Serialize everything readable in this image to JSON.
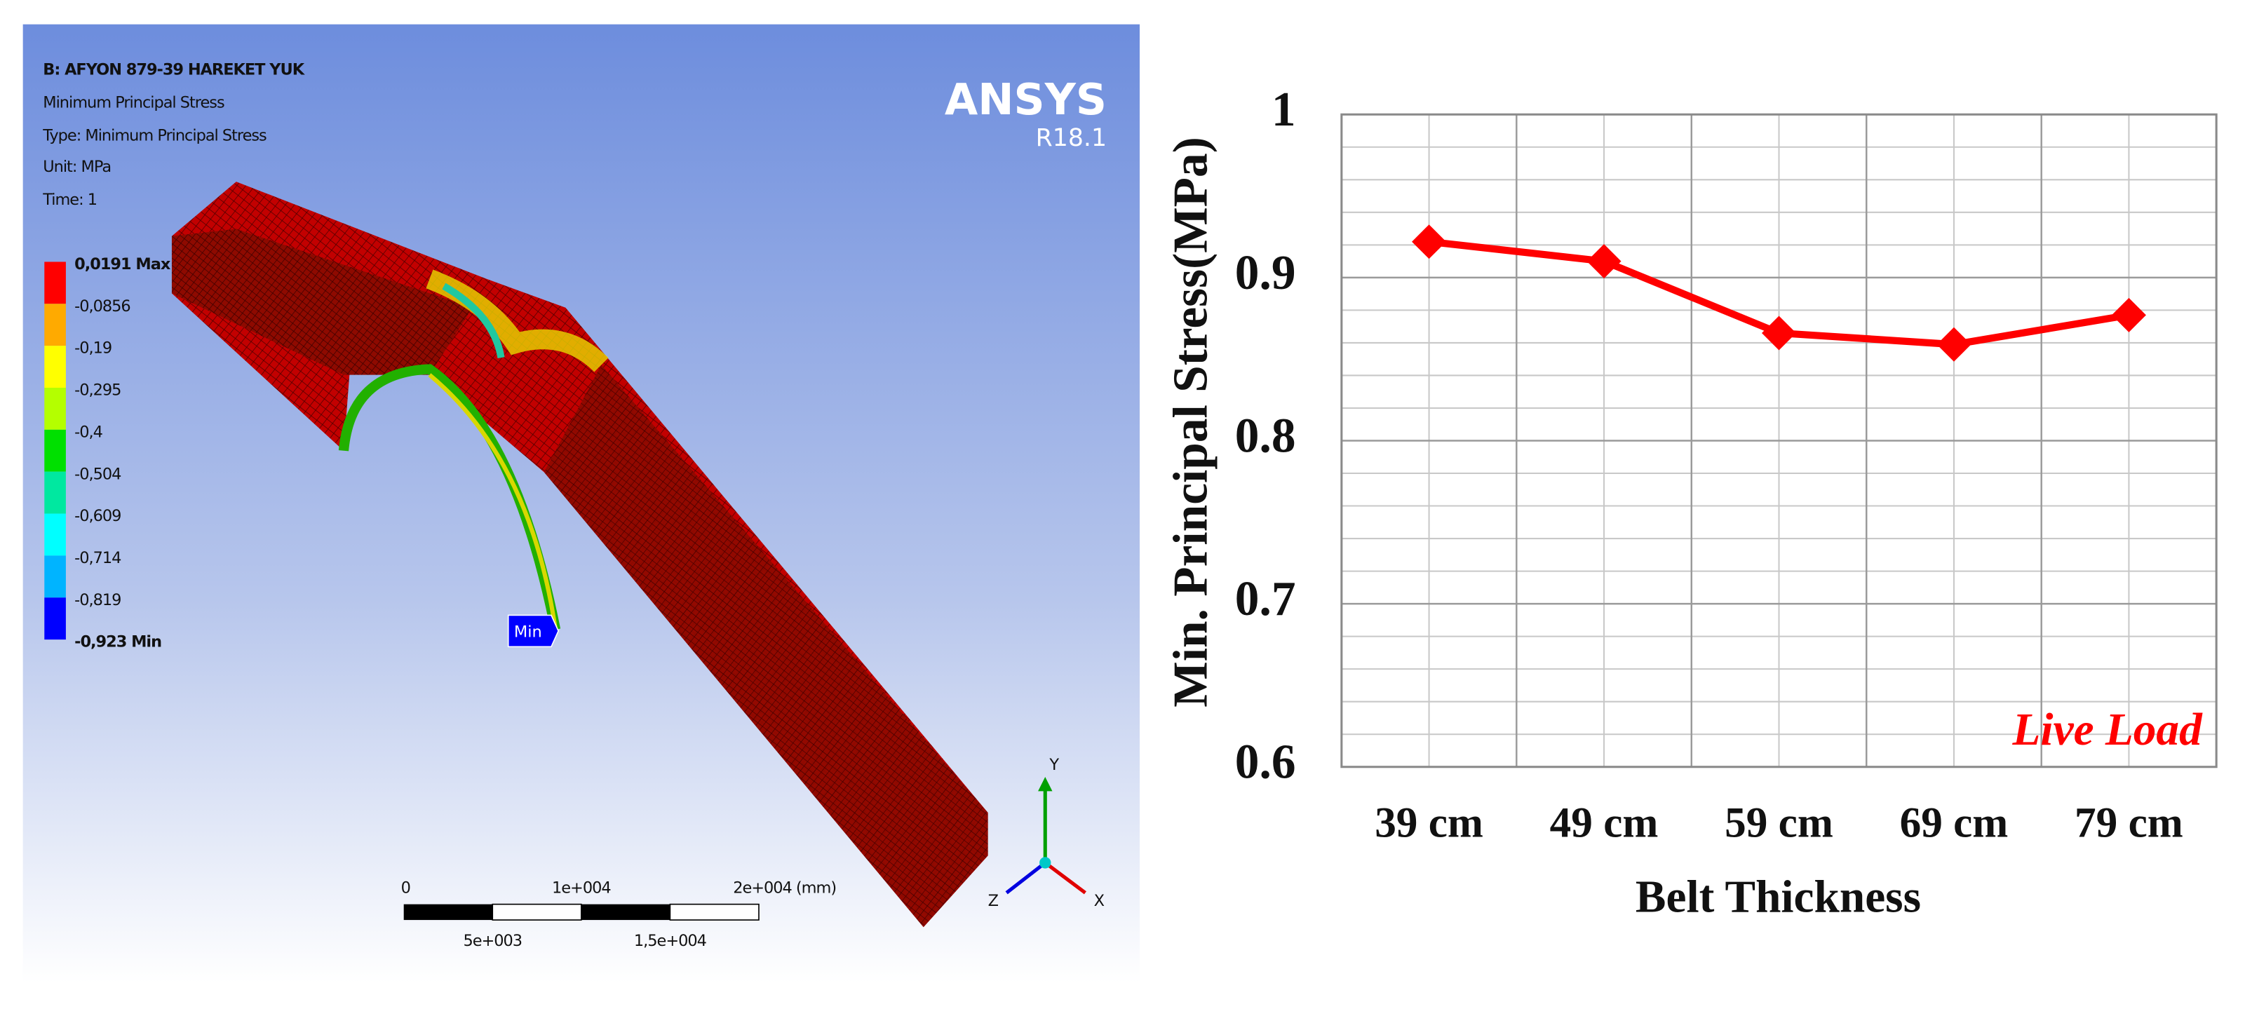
{
  "ansys_panel": {
    "title": "B: AFYON 879-39 HAREKET YUK",
    "lines": [
      "Minimum Principal Stress",
      "Type: Minimum Principal Stress",
      "Unit: MPa",
      "Time: 1"
    ],
    "brand": "ANSYS",
    "version": "R18.1",
    "legend_labels": [
      "0,0191 Max",
      "-0,0856",
      "-0,19",
      "-0,295",
      "-0,4",
      "-0,504",
      "-0,609",
      "-0,714",
      "-0,819",
      "-0,923 Min"
    ],
    "legend_colors": [
      "#ff0000",
      "#ffaa00",
      "#ffff00",
      "#b4ff00",
      "#00e000",
      "#00e8a0",
      "#00ffff",
      "#00b4ff",
      "#0000ff"
    ],
    "probe_label": "Min",
    "scale_labels_top": [
      "0",
      "1e+004",
      "2e+004 (mm)"
    ],
    "scale_labels_bottom": [
      "5e+003",
      "1,5e+004"
    ],
    "axes": [
      "Y",
      "Z",
      "X"
    ]
  },
  "chart_data": {
    "type": "line",
    "y_label": "Min. Principal Stress(MPa)",
    "x_label": "Belt Thickness",
    "annotation": "Live Load",
    "categories": [
      "39 cm",
      "49 cm",
      "59 cm",
      "69 cm",
      "79 cm"
    ],
    "values": [
      0.922,
      0.91,
      0.866,
      0.859,
      0.877
    ],
    "color": "#ff0000",
    "marker": "diamond",
    "ylim": [
      0.6,
      1
    ],
    "yticks": [
      0.6,
      0.7,
      0.8,
      0.9,
      1
    ],
    "grid": true,
    "minor_grid": true
  }
}
